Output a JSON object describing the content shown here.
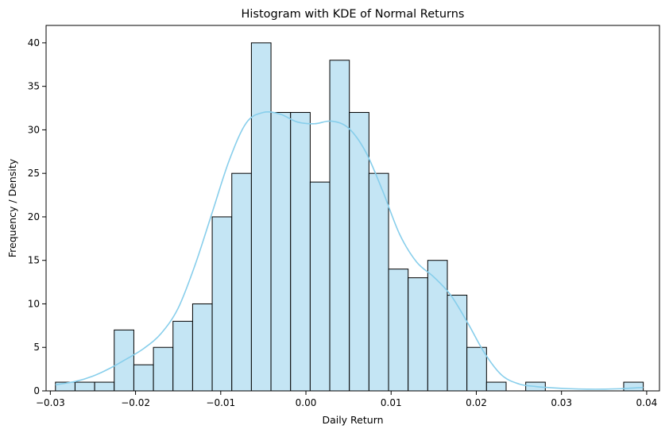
{
  "chart_data": {
    "type": "bar",
    "subtype": "histogram-with-kde",
    "title": "Histogram with KDE of Normal Returns",
    "xlabel": "Daily Return",
    "ylabel": "Frequency / Density",
    "xlim": [
      -0.0305,
      0.0415
    ],
    "ylim": [
      0,
      42
    ],
    "grid": false,
    "bar_color": "#c4e5f4",
    "kde_color": "#87ceeb",
    "bin_edges": [
      -0.0294,
      -0.0271,
      -0.0248,
      -0.0225,
      -0.0202,
      -0.0179,
      -0.0156,
      -0.0133,
      -0.011,
      -0.0087,
      -0.0064,
      -0.0041,
      -0.0018,
      0.0005,
      0.0028,
      0.0051,
      0.0074,
      0.0097,
      0.012,
      0.0143,
      0.0166,
      0.0189,
      0.0212,
      0.0235,
      0.0258,
      0.0281,
      0.0304,
      0.0327,
      0.035,
      0.0373,
      0.0396
    ],
    "counts": [
      1,
      1,
      1,
      7,
      3,
      5,
      8,
      10,
      20,
      25,
      40,
      32,
      32,
      24,
      38,
      32,
      25,
      14,
      13,
      15,
      11,
      5,
      1,
      0,
      1,
      0,
      0,
      0,
      0,
      1
    ],
    "kde": {
      "x": [
        -0.0294,
        -0.027,
        -0.025,
        -0.023,
        -0.021,
        -0.019,
        -0.017,
        -0.015,
        -0.013,
        -0.011,
        -0.009,
        -0.007,
        -0.005,
        -0.003,
        -0.001,
        0.001,
        0.003,
        0.005,
        0.007,
        0.009,
        0.011,
        0.013,
        0.015,
        0.017,
        0.019,
        0.021,
        0.023,
        0.025,
        0.027,
        0.029,
        0.031,
        0.033,
        0.035,
        0.037,
        0.0396
      ],
      "y": [
        0.7,
        1.1,
        1.7,
        2.6,
        3.7,
        4.9,
        6.6,
        9.5,
        14.5,
        20.5,
        26.5,
        30.8,
        32.0,
        31.8,
        30.9,
        30.7,
        31.0,
        30.2,
        27.5,
        23.0,
        18.0,
        14.8,
        13.1,
        11.0,
        7.8,
        4.3,
        1.8,
        0.8,
        0.5,
        0.35,
        0.25,
        0.2,
        0.2,
        0.25,
        0.4
      ]
    },
    "x_ticks": [
      -0.03,
      -0.02,
      -0.01,
      0.0,
      0.01,
      0.02,
      0.03,
      0.04
    ],
    "x_tick_labels": [
      "−0.03",
      "−0.02",
      "−0.01",
      "0.00",
      "0.01",
      "0.02",
      "0.03",
      "0.04"
    ],
    "y_ticks": [
      0,
      5,
      10,
      15,
      20,
      25,
      30,
      35,
      40
    ],
    "y_tick_labels": [
      "0",
      "5",
      "10",
      "15",
      "20",
      "25",
      "30",
      "35",
      "40"
    ]
  }
}
